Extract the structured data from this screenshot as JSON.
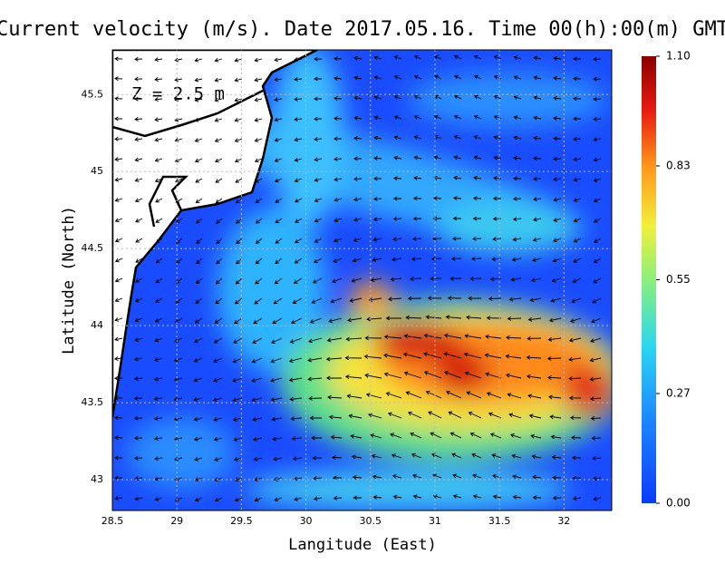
{
  "map": {
    "title": "Current velocity (m/s). Date 2017.05.16. Time 00(h):00(m) GMT",
    "annotation": "Z = 2.5 m",
    "xlabel": "Langitude (East)",
    "ylabel": "Latitude (North)",
    "xlim": [
      28.5,
      32.37
    ],
    "ylim": [
      42.8,
      45.79
    ],
    "xticks": [
      28.5,
      29,
      29.5,
      30,
      30.5,
      31,
      31.5,
      32
    ],
    "yticks": [
      43,
      43.5,
      44,
      44.5,
      45,
      45.5
    ],
    "colorbar": {
      "lim": [
        0,
        1.1
      ],
      "ticks": [
        {
          "value": 1.1,
          "label": "1.10"
        },
        0.83,
        0.55,
        0.27,
        {
          "value": 0,
          "label": "0.00"
        }
      ]
    }
  }
}
